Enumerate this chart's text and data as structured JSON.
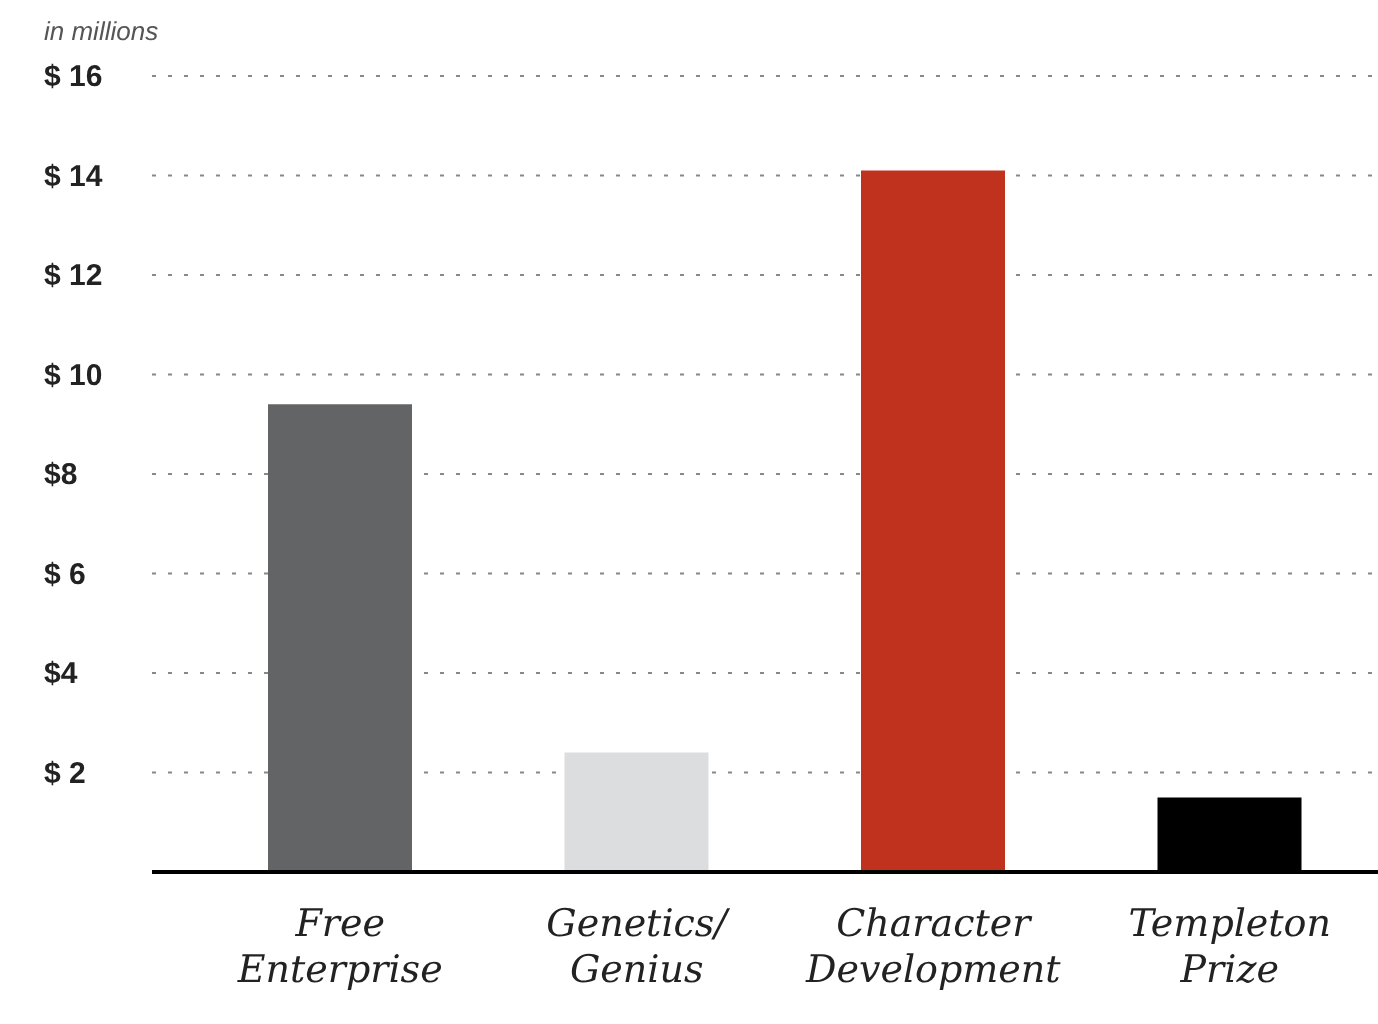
{
  "chart_data": {
    "type": "bar",
    "annotations": [
      "in millions"
    ],
    "categories": [
      "Free Enterprise",
      "Genetics/ Genius",
      "Character Development",
      "Templeton Prize"
    ],
    "values": [
      9.4,
      2.4,
      14.1,
      1.5
    ],
    "colors": [
      "#636466",
      "#dcdddf",
      "#c0311e",
      "#000000"
    ],
    "ylim": [
      0,
      16
    ],
    "yticks": [
      {
        "value": 2,
        "label": "$ 2"
      },
      {
        "value": 4,
        "label": "$4"
      },
      {
        "value": 6,
        "label": "$ 6"
      },
      {
        "value": 8,
        "label": "$8"
      },
      {
        "value": 10,
        "label": "$ 10"
      },
      {
        "value": 12,
        "label": "$ 12"
      },
      {
        "value": 14,
        "label": "$ 14"
      },
      {
        "value": 16,
        "label": "$ 16"
      }
    ],
    "grid": "y"
  }
}
